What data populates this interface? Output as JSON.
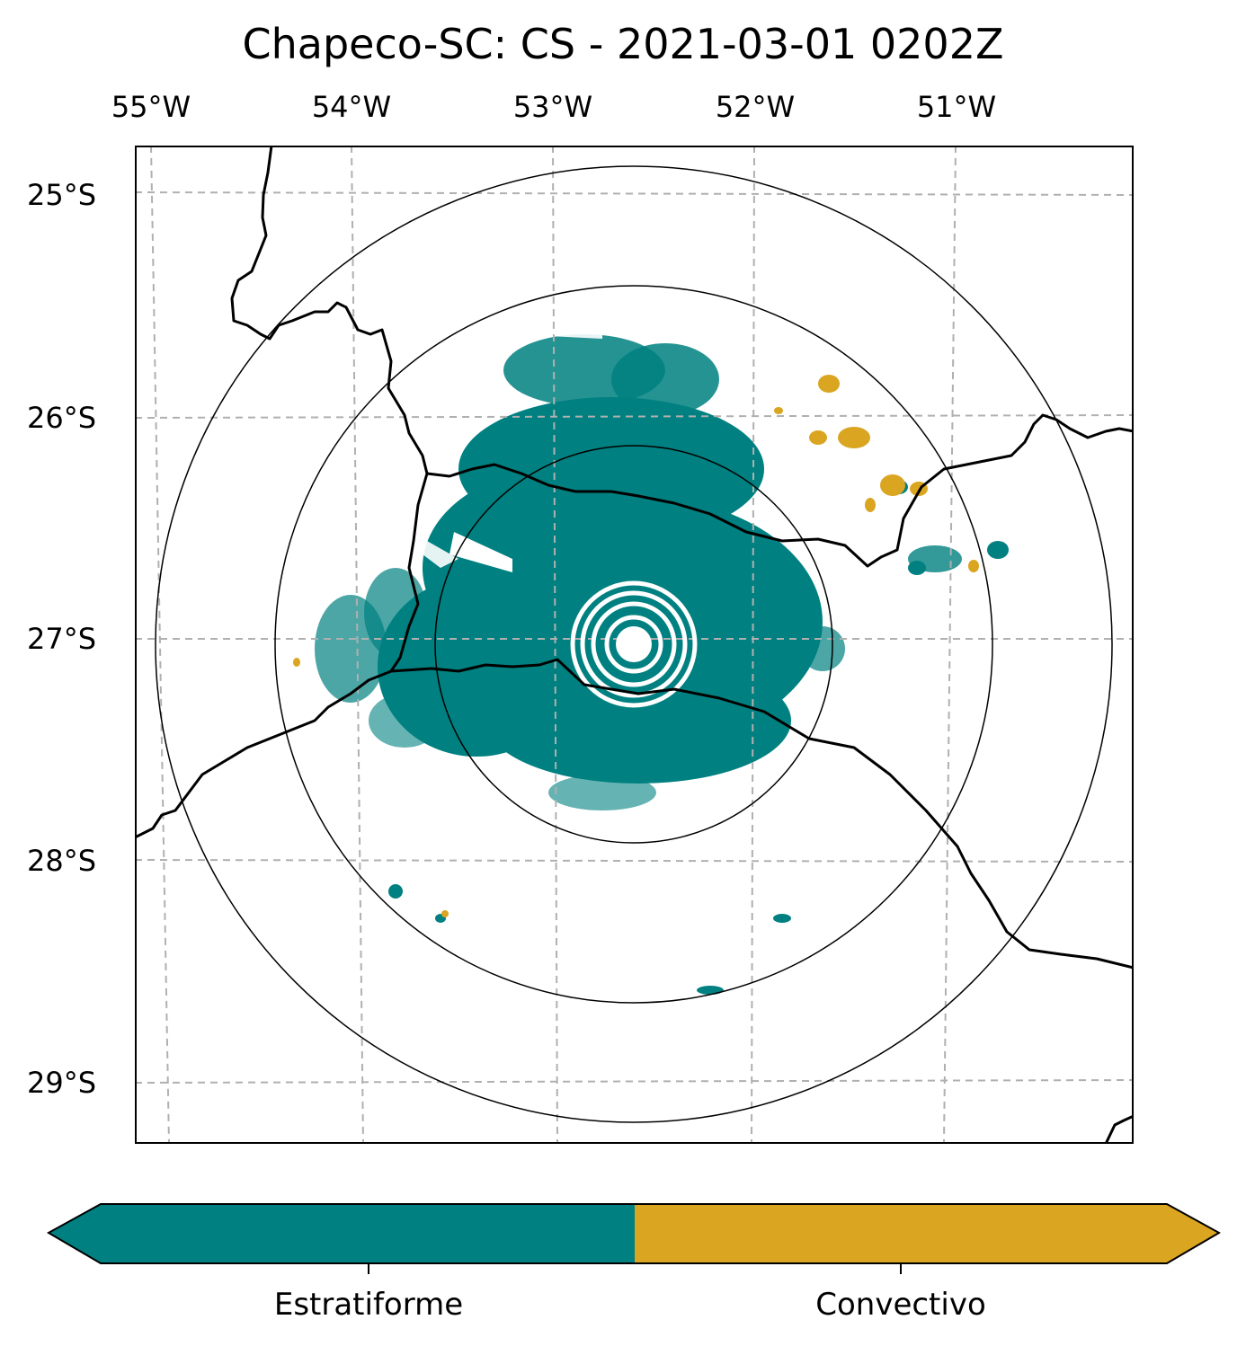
{
  "title": "Chapeco-SC: CS - 2021-03-01 0202Z",
  "lon_ticks": [
    "55°W",
    "54°W",
    "53°W",
    "52°W",
    "51°W"
  ],
  "lat_ticks": [
    "25°S",
    "26°S",
    "27°S",
    "28°S",
    "29°S"
  ],
  "colorbar": {
    "categories": [
      "Estratiforme",
      "Convectivo"
    ],
    "colors": [
      "#008080",
      "#DAA520"
    ]
  },
  "colors": {
    "stratiform": "#008080",
    "convective": "#DAA520",
    "gridlines": "#b0b0b0",
    "borders": "#000000"
  }
}
